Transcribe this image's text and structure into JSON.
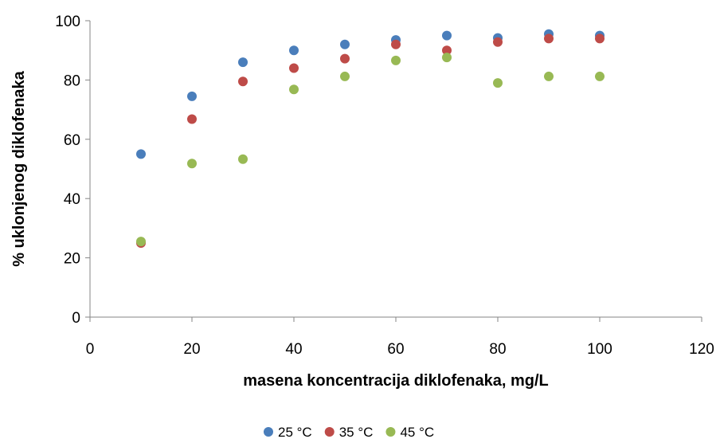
{
  "chart_data": {
    "type": "scatter",
    "title": "",
    "xlabel": "masena koncentracija diklofenaka,  mg/L",
    "ylabel": "% uklonjenog diklofenaka",
    "xlim": [
      0,
      120
    ],
    "ylim": [
      0,
      100
    ],
    "xticks": [
      0,
      20,
      40,
      60,
      80,
      100,
      120
    ],
    "yticks": [
      0,
      20,
      40,
      60,
      80,
      100
    ],
    "grid": false,
    "legend_position": "bottom",
    "series": [
      {
        "name": "25 °C",
        "color": "#4a7ebb",
        "x": [
          10,
          20,
          30,
          40,
          50,
          60,
          70,
          80,
          90,
          100
        ],
        "y": [
          55,
          74.5,
          86,
          90,
          92,
          93.5,
          95,
          94.2,
          95.5,
          95
        ]
      },
      {
        "name": "35 °C",
        "color": "#be4b48",
        "x": [
          10,
          20,
          30,
          40,
          50,
          60,
          70,
          80,
          90,
          100
        ],
        "y": [
          25,
          66.8,
          79.5,
          84,
          87.2,
          92,
          90,
          92.8,
          94,
          94
        ]
      },
      {
        "name": "45 °C",
        "color": "#98b954",
        "x": [
          10,
          20,
          30,
          40,
          50,
          60,
          70,
          80,
          90,
          100
        ],
        "y": [
          25.5,
          51.8,
          53.3,
          76.8,
          81.2,
          86.6,
          87.6,
          79,
          81.2,
          81.2
        ]
      }
    ]
  }
}
